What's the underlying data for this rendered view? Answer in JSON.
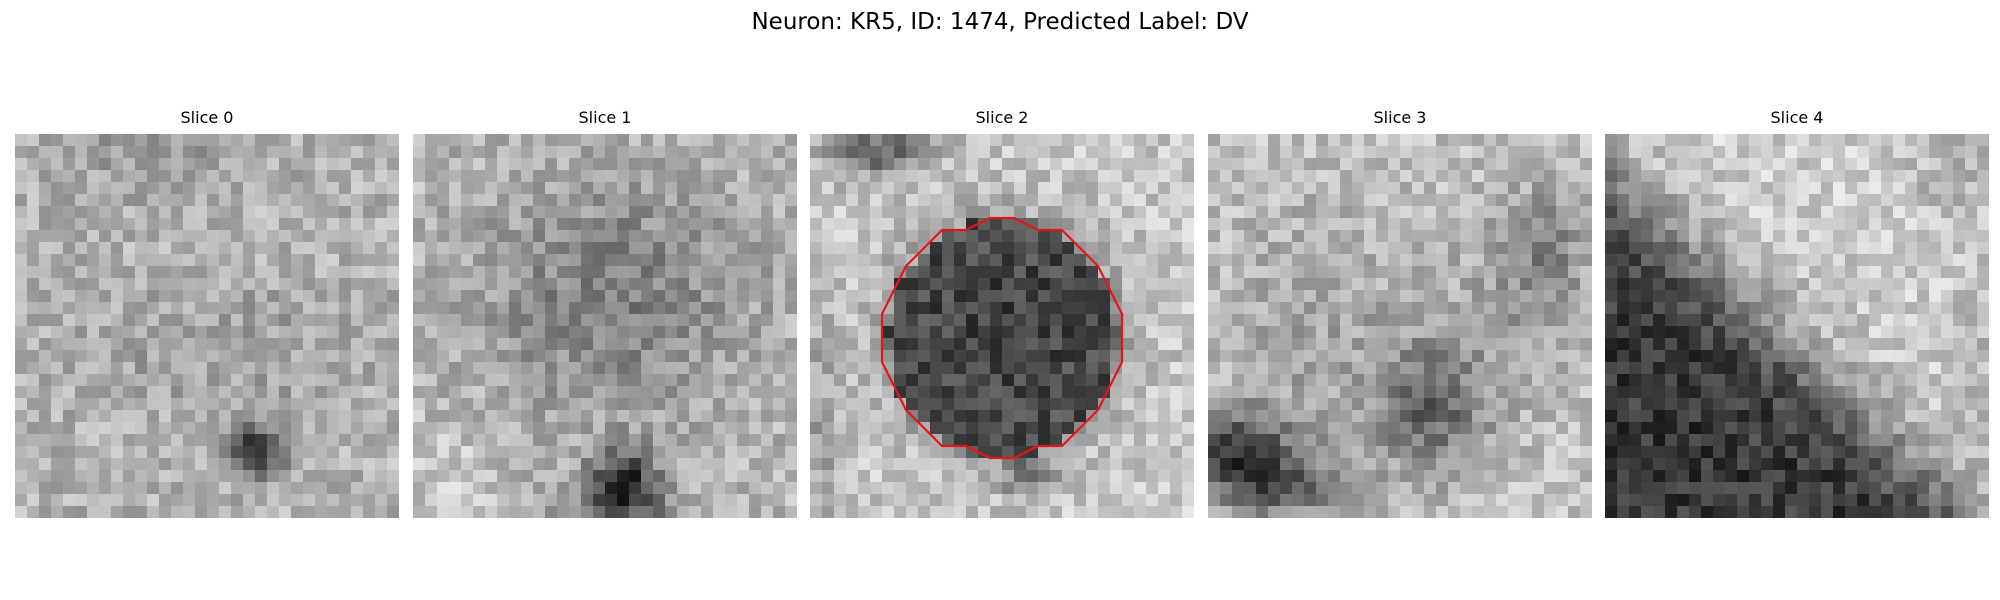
{
  "figure": {
    "title": "Neuron: KR5, ID: 1474, Predicted Label: DV"
  },
  "slices": [
    {
      "label": "Slice 0"
    },
    {
      "label": "Slice 1"
    },
    {
      "label": "Slice 2"
    },
    {
      "label": "Slice 3"
    },
    {
      "label": "Slice 4"
    }
  ],
  "image": {
    "colormap": "grayscale",
    "grid_cells": 32,
    "outlined_slice_index": 2,
    "outline_color": "#e8141b"
  }
}
